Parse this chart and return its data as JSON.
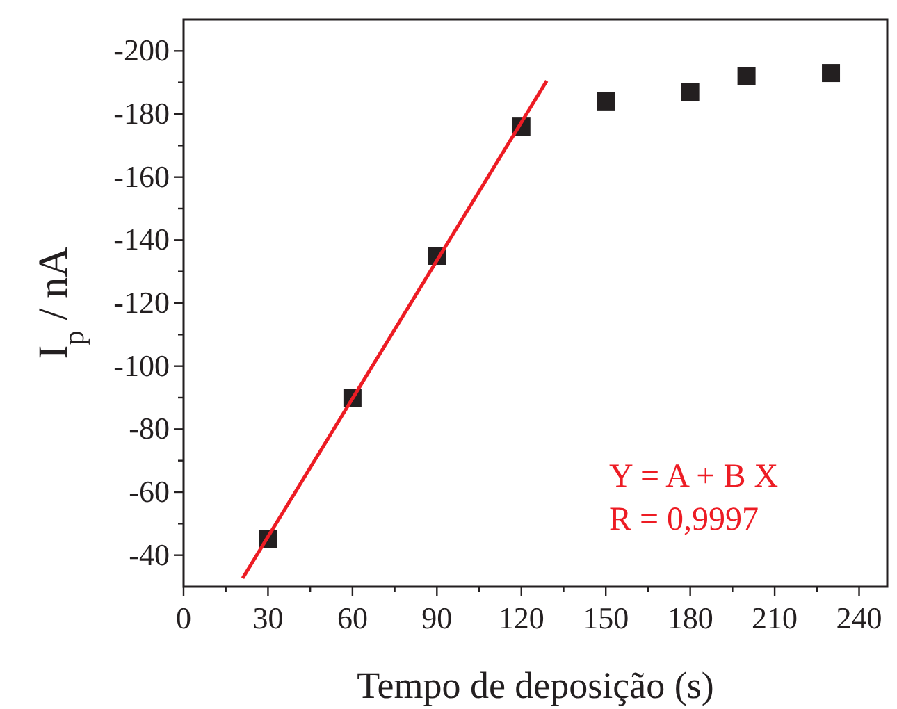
{
  "chart_data": {
    "type": "scatter",
    "xlabel": "Tempo de deposição (s)",
    "ylabel": "I$_{p}$ / nA",
    "marker": "square",
    "grid": false,
    "xlim": [
      0,
      250
    ],
    "ylim": [
      -30,
      -210
    ],
    "xticks": [
      0,
      {
        "value": 15,
        "label": null
      },
      30,
      {
        "value": 45,
        "label": null
      },
      60,
      {
        "value": 75,
        "label": null
      },
      90,
      {
        "value": 105,
        "label": null
      },
      120,
      {
        "value": 135,
        "label": null
      },
      150,
      {
        "value": 165,
        "label": null
      },
      180,
      {
        "value": 195,
        "label": null
      },
      210,
      {
        "value": 225,
        "label": null
      },
      240
    ],
    "yticks": [
      -40,
      {
        "value": -50,
        "label": null
      },
      -60,
      {
        "value": -70,
        "label": null
      },
      -80,
      {
        "value": -90,
        "label": null
      },
      -100,
      {
        "value": -110,
        "label": null
      },
      -120,
      {
        "value": -130,
        "label": null
      },
      -140,
      {
        "value": -150,
        "label": null
      },
      -160,
      {
        "value": -170,
        "label": null
      },
      -180,
      {
        "value": -190,
        "label": null
      },
      -200
    ],
    "series": [
      {
        "color": "#231f20",
        "x": [
          30,
          60,
          90,
          120,
          150,
          180,
          200,
          230
        ],
        "values": [
          -45,
          -90,
          -135,
          -176,
          -184,
          -187,
          -192,
          -193
        ]
      },
      {
        "type": "line",
        "color": "#ed1c24",
        "x": [
          21,
          129
        ],
        "values": [
          -32.7,
          -190.5
        ],
        "marker": "none"
      }
    ],
    "annotations": [
      "Y = A + B X",
      "R = 0,9997"
    ]
  }
}
